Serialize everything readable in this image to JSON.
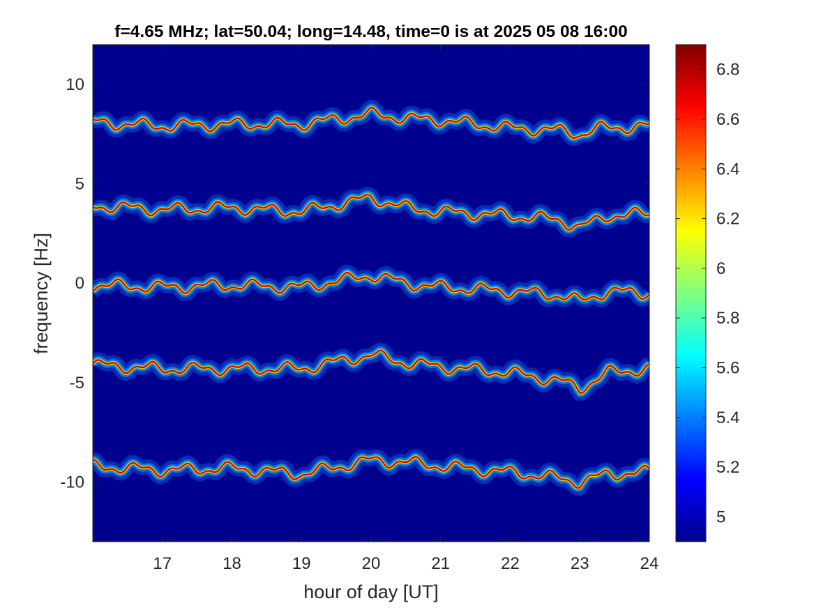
{
  "chart_data": {
    "type": "heatmap",
    "title": "f=4.65 MHz;  lat=50.04; long=14.48, time=0 is at 2025 05 08 16:00",
    "xlabel": "hour of day [UT]",
    "ylabel": "frequency [Hz]",
    "xlim": [
      16,
      24
    ],
    "ylim": [
      -13,
      12
    ],
    "xticks": [
      17,
      18,
      19,
      20,
      21,
      22,
      23,
      24
    ],
    "yticks": [
      -10,
      -5,
      0,
      5,
      10
    ],
    "colormap": "jet",
    "background_color": "#00008f",
    "colorbar": {
      "range": [
        4.9,
        6.9
      ],
      "ticks": [
        5,
        5.2,
        5.4,
        5.6,
        5.8,
        6,
        6.2,
        6.4,
        6.6,
        6.8
      ]
    },
    "traces": [
      {
        "offset_hz": 8,
        "points": [
          [
            16,
            8.1
          ],
          [
            17,
            7.9
          ],
          [
            18,
            8.0
          ],
          [
            19,
            8.0
          ],
          [
            20,
            8.5
          ],
          [
            20.5,
            8.3
          ],
          [
            21,
            8.2
          ],
          [
            22,
            7.8
          ],
          [
            22.7,
            7.7
          ],
          [
            23,
            7.5
          ],
          [
            23.3,
            7.8
          ],
          [
            24,
            7.9
          ]
        ]
      },
      {
        "offset_hz": 4,
        "points": [
          [
            16,
            3.9
          ],
          [
            17,
            3.7
          ],
          [
            18,
            3.8
          ],
          [
            19,
            3.6
          ],
          [
            20,
            4.3
          ],
          [
            20.5,
            3.8
          ],
          [
            21,
            3.6
          ],
          [
            22,
            3.4
          ],
          [
            22.7,
            3.2
          ],
          [
            23,
            2.8
          ],
          [
            23.4,
            3.4
          ],
          [
            24,
            3.5
          ]
        ]
      },
      {
        "offset_hz": 0,
        "points": [
          [
            16,
            -0.1
          ],
          [
            17,
            -0.2
          ],
          [
            18,
            -0.1
          ],
          [
            19,
            -0.2
          ],
          [
            20,
            0.4
          ],
          [
            20.5,
            0.0
          ],
          [
            21,
            -0.2
          ],
          [
            22,
            -0.4
          ],
          [
            22.7,
            -0.6
          ],
          [
            23,
            -0.9
          ],
          [
            23.4,
            -0.4
          ],
          [
            24,
            -0.5
          ]
        ]
      },
      {
        "offset_hz": -4,
        "points": [
          [
            16,
            -4.1
          ],
          [
            17,
            -4.3
          ],
          [
            18,
            -4.3
          ],
          [
            19,
            -4.3
          ],
          [
            20,
            -3.6
          ],
          [
            20.5,
            -4.0
          ],
          [
            21,
            -4.2
          ],
          [
            22,
            -4.5
          ],
          [
            22.7,
            -4.9
          ],
          [
            23,
            -5.3
          ],
          [
            23.4,
            -4.5
          ],
          [
            24,
            -4.3
          ]
        ]
      },
      {
        "offset_hz": -9,
        "points": [
          [
            16,
            -9.2
          ],
          [
            17,
            -9.4
          ],
          [
            18,
            -9.3
          ],
          [
            19,
            -9.6
          ],
          [
            20,
            -8.9
          ],
          [
            20.5,
            -9.0
          ],
          [
            21,
            -9.2
          ],
          [
            22,
            -9.5
          ],
          [
            22.7,
            -9.8
          ],
          [
            23,
            -10.0
          ],
          [
            23.4,
            -9.6
          ],
          [
            24,
            -9.5
          ]
        ]
      }
    ]
  }
}
